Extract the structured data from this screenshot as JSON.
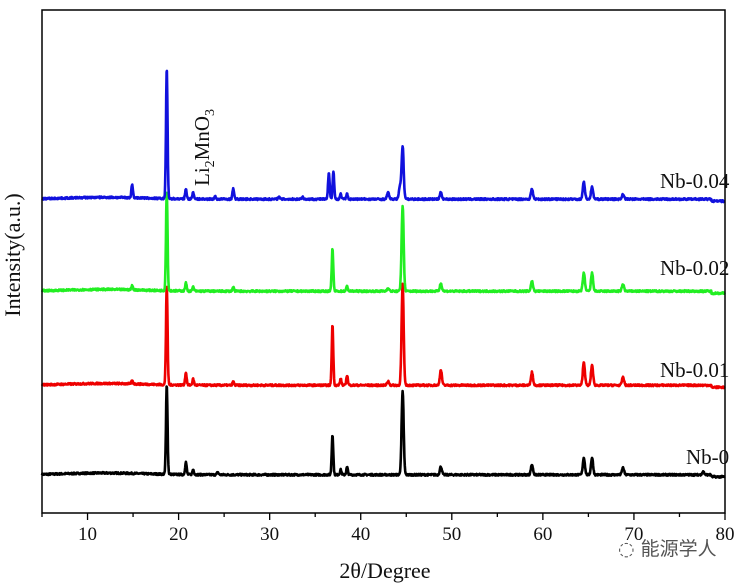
{
  "chart_data": {
    "type": "line",
    "title": "",
    "xlabel": "2θ/Degree",
    "ylabel": "Intensity(a.u.)",
    "xlim": [
      5,
      80
    ],
    "ylim": [
      0,
      100
    ],
    "y_ticks_shown": false,
    "grid": false,
    "legend": "inline labels at right end of each curve",
    "x_ticks": [
      10,
      20,
      30,
      40,
      50,
      60,
      70,
      80
    ],
    "annotation": {
      "text": "Li2MnO3",
      "base": "Li",
      "sub1": "2",
      "mid": "MnO",
      "sub2": "3",
      "x": 21,
      "rotation": "vertical"
    },
    "series": [
      {
        "name": "Nb-0",
        "color": "#000000",
        "baseline": 7.6,
        "peaks": [
          [
            18.7,
            17.9
          ],
          [
            20.8,
            2.5
          ],
          [
            21.6,
            1.0
          ],
          [
            24.3,
            0.5
          ],
          [
            36.9,
            8.0
          ],
          [
            37.8,
            1.0
          ],
          [
            38.5,
            1.5
          ],
          [
            44.6,
            16.5
          ],
          [
            48.8,
            1.6
          ],
          [
            58.8,
            2.0
          ],
          [
            64.5,
            3.4
          ],
          [
            65.4,
            3.4
          ],
          [
            68.8,
            1.4
          ],
          [
            77.6,
            0.6
          ]
        ]
      },
      {
        "name": "Nb-0.01",
        "color": "#ee0000",
        "baseline": 25.4,
        "peaks": [
          [
            14.9,
            0.6
          ],
          [
            18.7,
            20
          ],
          [
            20.8,
            2.5
          ],
          [
            21.6,
            1.2
          ],
          [
            26.0,
            0.7
          ],
          [
            36.9,
            12
          ],
          [
            37.8,
            1.2
          ],
          [
            38.5,
            2.0
          ],
          [
            43.0,
            0.8
          ],
          [
            44.6,
            20
          ],
          [
            48.8,
            3.0
          ],
          [
            58.8,
            2.6
          ],
          [
            64.5,
            4.6
          ],
          [
            65.4,
            4.0
          ],
          [
            68.8,
            1.6
          ]
        ]
      },
      {
        "name": "Nb-0.02",
        "color": "#22ee22",
        "baseline": 44.1,
        "peaks": [
          [
            14.9,
            0.8
          ],
          [
            18.7,
            20
          ],
          [
            20.8,
            1.6
          ],
          [
            21.6,
            0.8
          ],
          [
            26.0,
            0.8
          ],
          [
            36.9,
            8.5
          ],
          [
            38.5,
            1.0
          ],
          [
            43.0,
            0.6
          ],
          [
            44.6,
            17
          ],
          [
            48.8,
            1.5
          ],
          [
            58.8,
            2.0
          ],
          [
            64.5,
            3.6
          ],
          [
            65.4,
            3.6
          ],
          [
            68.8,
            1.4
          ]
        ]
      },
      {
        "name": "Nb-0.04",
        "color": "#1111dd",
        "baseline": 62.4,
        "peaks": [
          [
            14.9,
            2.6
          ],
          [
            18.7,
            26
          ],
          [
            20.8,
            2.0
          ],
          [
            21.6,
            1.4
          ],
          [
            24.0,
            0.5
          ],
          [
            26.0,
            2.2
          ],
          [
            31.0,
            0.5
          ],
          [
            33.6,
            0.5
          ],
          [
            36.5,
            5.2
          ],
          [
            37.0,
            5.6
          ],
          [
            37.8,
            1.0
          ],
          [
            38.5,
            1.0
          ],
          [
            43.0,
            1.3
          ],
          [
            44.3,
            2.5
          ],
          [
            44.6,
            10.5
          ],
          [
            48.8,
            1.3
          ],
          [
            58.8,
            2.0
          ],
          [
            64.5,
            3.4
          ],
          [
            65.4,
            2.4
          ],
          [
            68.8,
            1.0
          ]
        ]
      }
    ]
  },
  "watermark": "能源学人"
}
